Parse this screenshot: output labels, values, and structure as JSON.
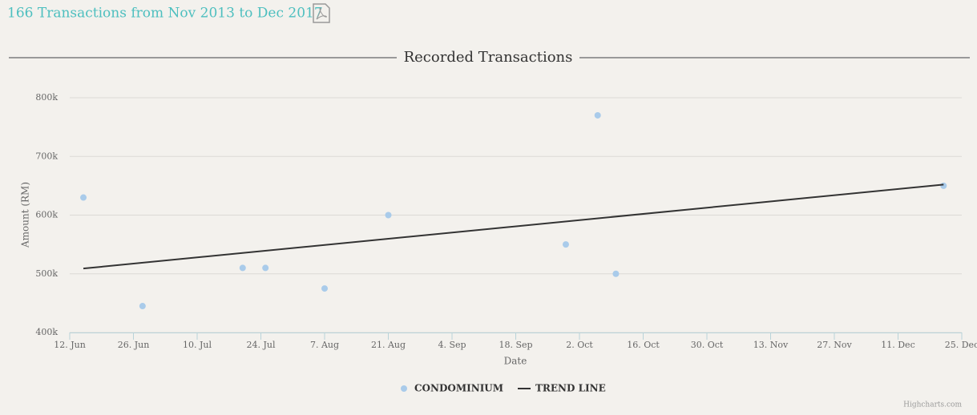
{
  "header": {
    "title": "166 Transactions from Nov 2013 to Dec 2017"
  },
  "chart_data": {
    "type": "scatter",
    "title": "Recorded Transactions",
    "x_label": "Date",
    "y_label": "Amount (RM)",
    "xlim": [
      0,
      196
    ],
    "xticks": [
      {
        "value": 0,
        "label": "12. Jun"
      },
      {
        "value": 14,
        "label": "26. Jun"
      },
      {
        "value": 28,
        "label": "10. Jul"
      },
      {
        "value": 42,
        "label": "24. Jul"
      },
      {
        "value": 56,
        "label": "7. Aug"
      },
      {
        "value": 70,
        "label": "21. Aug"
      },
      {
        "value": 84,
        "label": "4. Sep"
      },
      {
        "value": 98,
        "label": "18. Sep"
      },
      {
        "value": 112,
        "label": "2. Oct"
      },
      {
        "value": 126,
        "label": "16. Oct"
      },
      {
        "value": 140,
        "label": "30. Oct"
      },
      {
        "value": 154,
        "label": "13. Nov"
      },
      {
        "value": 168,
        "label": "27. Nov"
      },
      {
        "value": 182,
        "label": "11. Dec"
      },
      {
        "value": 196,
        "label": "25. Dec"
      }
    ],
    "ylim": [
      400000,
      800000
    ],
    "yticks": [
      {
        "value": 400000,
        "label": "400k"
      },
      {
        "value": 500000,
        "label": "500k"
      },
      {
        "value": 600000,
        "label": "600k"
      },
      {
        "value": 700000,
        "label": "700k"
      },
      {
        "value": 800000,
        "label": "800k"
      }
    ],
    "grid": true,
    "series": [
      {
        "name": "CONDOMINIUM",
        "type": "scatter",
        "color": "#a9cbea",
        "x": [
          3,
          16,
          38,
          43,
          56,
          70,
          109,
          116,
          120,
          192
        ],
        "values": [
          630000,
          445000,
          510000,
          510000,
          475000,
          600000,
          550000,
          770000,
          500000,
          650000
        ]
      },
      {
        "name": "TREND LINE",
        "type": "line",
        "color": "#333333",
        "x": [
          3,
          192
        ],
        "values": [
          509000,
          652000
        ]
      }
    ]
  },
  "credits": "Highcharts.com"
}
